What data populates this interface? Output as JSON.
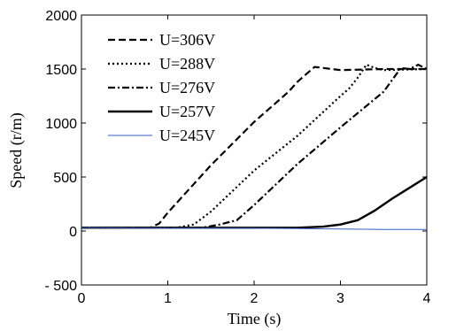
{
  "chart_data": {
    "type": "line",
    "title": "",
    "xlabel": "Time (s)",
    "ylabel": "Speed (r/m)",
    "xlim": [
      0,
      4
    ],
    "ylim": [
      -500,
      2000
    ],
    "xticks": [
      0,
      1,
      2,
      3,
      4
    ],
    "yticks": [
      -500,
      0,
      500,
      1000,
      1500,
      2000
    ],
    "xtick_labels": [
      "0",
      "1",
      "2",
      "3",
      "4"
    ],
    "ytick_labels": [
      "- 500",
      "0",
      "500",
      "1000",
      "1500",
      "2000"
    ],
    "grid": false,
    "legend_position": "top-left",
    "series": [
      {
        "name": "U=306V",
        "color": "#000000",
        "style": "dashed",
        "x": [
          0,
          0.8,
          0.9,
          1.0,
          1.5,
          2.0,
          2.4,
          2.5,
          2.6,
          2.7,
          2.8,
          3.0,
          3.5,
          4.0
        ],
        "y": [
          30,
          30,
          70,
          170,
          610,
          1010,
          1290,
          1380,
          1450,
          1520,
          1510,
          1490,
          1500,
          1500
        ]
      },
      {
        "name": "U=288V",
        "color": "#000000",
        "style": "dotted",
        "x": [
          0,
          1.1,
          1.3,
          1.5,
          2.0,
          2.5,
          3.0,
          3.1,
          3.2,
          3.3,
          3.4,
          3.5,
          4.0
        ],
        "y": [
          30,
          30,
          60,
          180,
          560,
          880,
          1250,
          1320,
          1420,
          1540,
          1510,
          1490,
          1500
        ]
      },
      {
        "name": "U=276V",
        "color": "#000000",
        "style": "dashdot",
        "x": [
          0,
          1.4,
          1.6,
          1.8,
          2.0,
          2.5,
          3.0,
          3.5,
          3.6,
          3.7,
          3.8,
          3.9,
          4.0
        ],
        "y": [
          30,
          30,
          60,
          100,
          240,
          620,
          960,
          1290,
          1400,
          1510,
          1500,
          1540,
          1500
        ]
      },
      {
        "name": "U=257V",
        "color": "#000000",
        "style": "solid-thick",
        "x": [
          0,
          2.5,
          2.8,
          3.0,
          3.2,
          3.4,
          3.6,
          3.8,
          4.0
        ],
        "y": [
          30,
          30,
          40,
          60,
          100,
          190,
          300,
          400,
          500
        ]
      },
      {
        "name": "U=245V",
        "color": "#3a5fc0",
        "style": "solid-thin",
        "x": [
          0,
          1.0,
          2.0,
          2.5,
          3.0,
          3.5,
          4.0
        ],
        "y": [
          30,
          25,
          25,
          22,
          18,
          15,
          15
        ]
      }
    ]
  }
}
